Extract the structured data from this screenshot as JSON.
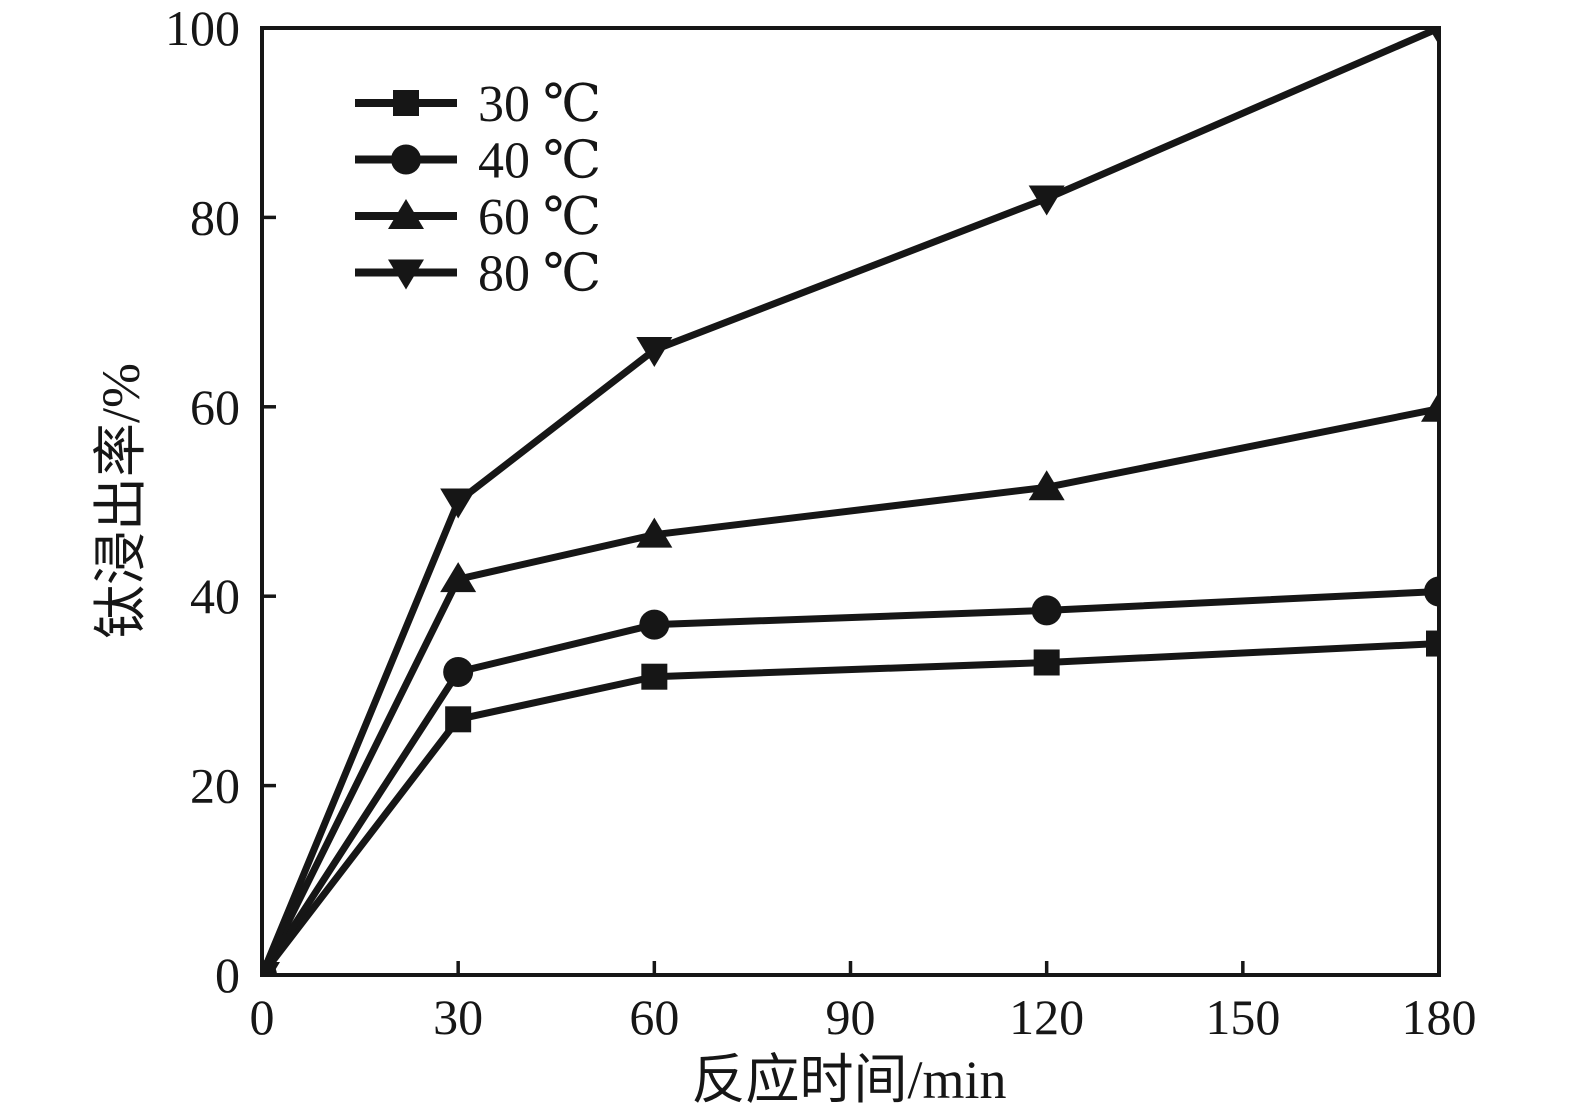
{
  "figure": {
    "background_color": "#ffffff",
    "ink_color": "#161616"
  },
  "chart_data": {
    "type": "line",
    "title": "",
    "xlabel": "反应时间/min",
    "ylabel": "钛浸出率/%",
    "x": [
      0,
      30,
      60,
      120,
      180
    ],
    "series": [
      {
        "name": "30 ℃",
        "marker": "square",
        "values": [
          0,
          27,
          31.5,
          33,
          35
        ]
      },
      {
        "name": "40 ℃",
        "marker": "circle",
        "values": [
          0,
          32,
          37,
          38.5,
          40.5
        ]
      },
      {
        "name": "60 ℃",
        "marker": "triangle-up",
        "values": [
          0,
          41.8,
          46.5,
          51.5,
          59.8
        ]
      },
      {
        "name": "80 ℃",
        "marker": "triangle-down",
        "values": [
          0,
          50,
          66,
          82,
          100
        ]
      }
    ],
    "xlim": [
      0,
      180
    ],
    "ylim": [
      0,
      100
    ],
    "xticks": [
      0,
      30,
      60,
      90,
      120,
      150,
      180
    ],
    "yticks": [
      0,
      20,
      40,
      60,
      80,
      100
    ],
    "grid": false,
    "frame": "box",
    "tick_direction": "in",
    "line_color": "#161616",
    "legend_position": "upper-left-inside"
  }
}
